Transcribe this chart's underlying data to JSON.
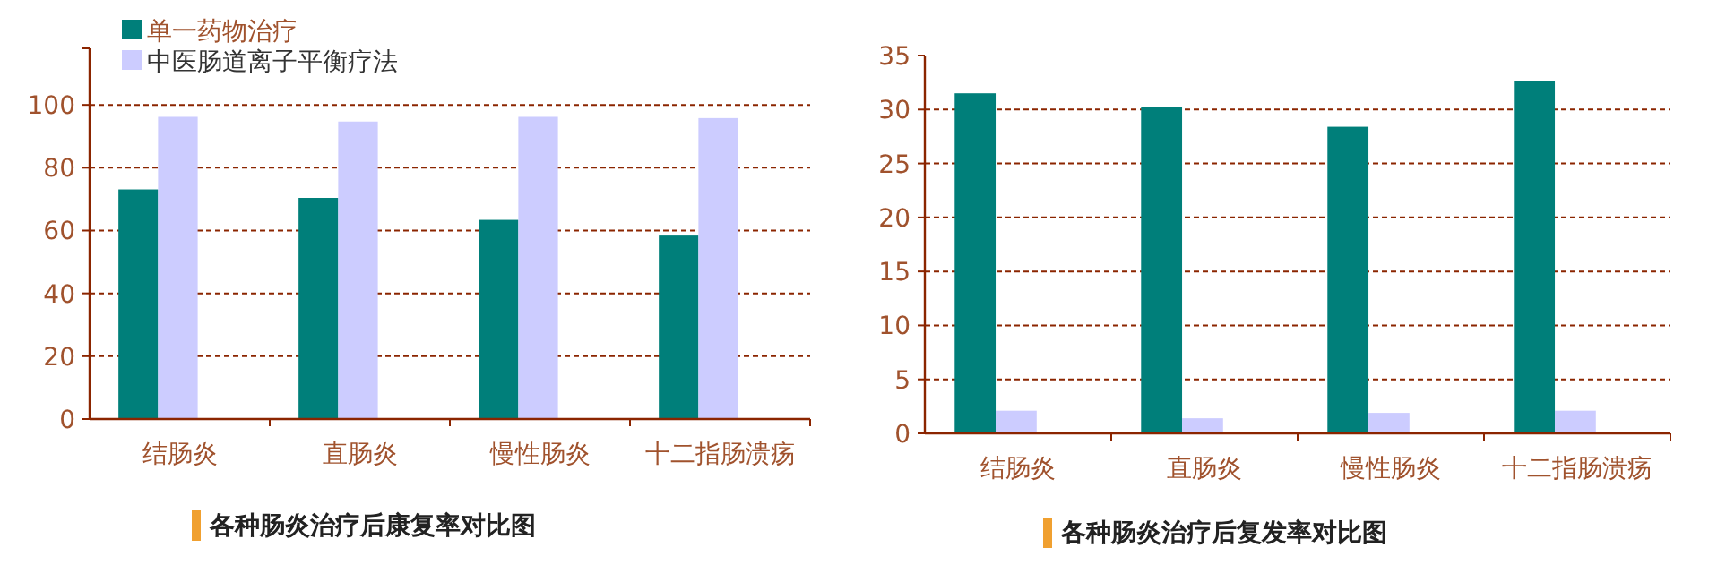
{
  "chart_data": [
    {
      "type": "bar",
      "title": "各种肠炎治疗后康复率对比图",
      "categories": [
        "结肠炎",
        "直肠炎",
        "慢性肠炎",
        "十二指肠溃疡"
      ],
      "series": [
        {
          "name": "单一药物治疗",
          "color": "#007f7a",
          "values": [
            73.1,
            70.4,
            63.4,
            58.4
          ]
        },
        {
          "name": "中医肠道离子平衡疗法",
          "color": "#ccccff",
          "values": [
            96.2,
            94.7,
            96.2,
            95.8
          ]
        }
      ],
      "ylim": [
        0,
        118
      ],
      "yticks": [
        0,
        20,
        40,
        60,
        80,
        100
      ],
      "grid": "y",
      "legend": "top left"
    },
    {
      "type": "bar",
      "title": "各种肠炎治疗后复发率对比图",
      "categories": [
        "结肠炎",
        "直肠炎",
        "慢性肠炎",
        "十二指肠溃疡"
      ],
      "series": [
        {
          "color": "#007f7a",
          "values": [
            31.5,
            30.2,
            28.4,
            32.6
          ]
        },
        {
          "color": "#ccccff",
          "values": [
            2.1,
            1.4,
            1.9,
            2.1
          ]
        }
      ],
      "ylim": [
        0,
        35
      ],
      "yticks": [
        0,
        5,
        10,
        15,
        20,
        25,
        30,
        35
      ],
      "grid": "y"
    }
  ]
}
